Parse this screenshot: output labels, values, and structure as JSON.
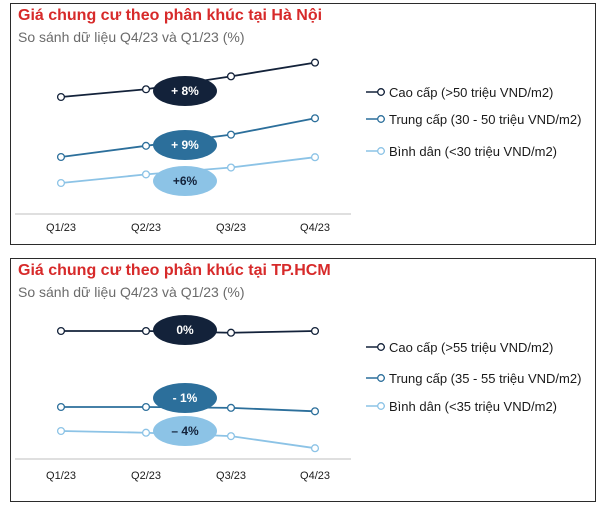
{
  "colors": {
    "title": "#d72a2a",
    "cao_cap": "#13223a",
    "trung_cap": "#2c6f9b",
    "binh_dan": "#8cc3e6",
    "axis": "#bfbfbf",
    "subtitle": "#6b6b6b"
  },
  "panels": [
    {
      "title": "Giá chung cư theo phân khúc tại Hà Nội",
      "subtitle": "So sánh dữ liệu Q4/23 và Q1/23 (%)",
      "legend": [
        "Cao cấp (>50 triệu VND/m2)",
        "Trung cấp (30 - 50 triệu VND/m2)",
        "Bình dân (<30 triệu VND/m2)"
      ],
      "badges": [
        "+ 8%",
        "+ 9%",
        "+6%"
      ]
    },
    {
      "title": "Giá chung cư theo phân khúc tại TP.HCM",
      "subtitle": "So sánh dữ liệu Q4/23 và Q1/23 (%)",
      "legend": [
        "Cao cấp (>55 triệu VND/m2)",
        "Trung cấp (35 - 55 triệu VND/m2)",
        "Bình dân (<35 triệu VND/m2)"
      ],
      "badges": [
        "0%",
        "- 1%",
        "– 4%"
      ]
    }
  ],
  "chart_data": [
    {
      "type": "line",
      "title": "Giá chung cư theo phân khúc tại Hà Nội",
      "subtitle": "So sánh dữ liệu Q4/23 và Q1/23 (%)",
      "categories": [
        "Q1/23",
        "Q2/23",
        "Q3/23",
        "Q4/23"
      ],
      "series": [
        {
          "name": "Cao cấp (>50 triệu VND/m2)",
          "values": [
            100,
            101.8,
            104.8,
            108
          ],
          "change_label": "+ 8%"
        },
        {
          "name": "Trung cấp (30 - 50 triệu VND/m2)",
          "values": [
            100,
            102.6,
            105.2,
            109
          ],
          "change_label": "+ 9%"
        },
        {
          "name": "Bình dân (<30 triệu VND/m2)",
          "values": [
            100,
            102,
            103.6,
            106
          ],
          "change_label": "+6%"
        }
      ],
      "grid": false,
      "legend_position": "right"
    },
    {
      "type": "line",
      "title": "Giá chung cư theo phân khúc tại TP.HCM",
      "subtitle": "So sánh dữ liệu Q4/23 và Q1/23 (%)",
      "categories": [
        "Q1/23",
        "Q2/23",
        "Q3/23",
        "Q4/23"
      ],
      "series": [
        {
          "name": "Cao cấp (>55 triệu VND/m2)",
          "values": [
            100,
            100,
            99.6,
            100
          ],
          "change_label": "0%"
        },
        {
          "name": "Trung cấp (35 - 55 triệu VND/m2)",
          "values": [
            100,
            100,
            99.8,
            99
          ],
          "change_label": "- 1%"
        },
        {
          "name": "Bình dân (<35 triệu VND/m2)",
          "values": [
            100,
            99.6,
            98.8,
            96
          ],
          "change_label": "– 4%"
        }
      ],
      "grid": false,
      "legend_position": "right"
    }
  ]
}
